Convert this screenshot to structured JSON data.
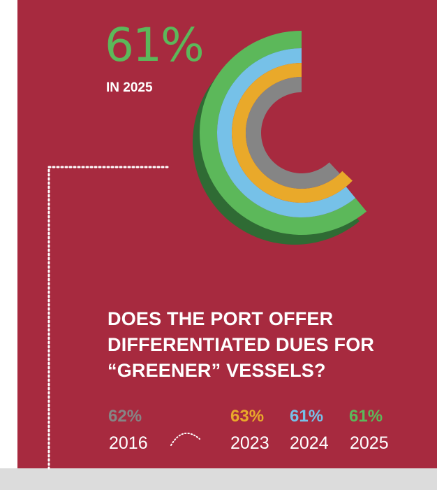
{
  "headline": {
    "value": "61%",
    "sub": "IN 2025"
  },
  "question": {
    "lines": [
      "DOES THE PORT OFFER",
      "DIFFERENTIATED DUES FOR",
      "“GREENER” VESSELS?"
    ]
  },
  "colors": {
    "background": "#a72a3f",
    "y2016": "#858585",
    "y2023": "#e9a92a",
    "y2024": "#76c1e8",
    "y2025": "#5cb85a",
    "y2025_shadow": "#2f6b34"
  },
  "chart_data": {
    "type": "pie",
    "title": "DOES THE PORT OFFER DIFFERENTIATED DUES FOR “GREENER” VESSELS?",
    "series": [
      {
        "name": "2016",
        "value": 62,
        "label": "62%",
        "color": "#858585"
      },
      {
        "name": "2023",
        "value": 63,
        "label": "63%",
        "color": "#e9a92a"
      },
      {
        "name": "2024",
        "value": 61,
        "label": "61%",
        "color": "#76c1e8"
      },
      {
        "name": "2025",
        "value": 61,
        "label": "61%",
        "color": "#5cb85a"
      }
    ]
  }
}
